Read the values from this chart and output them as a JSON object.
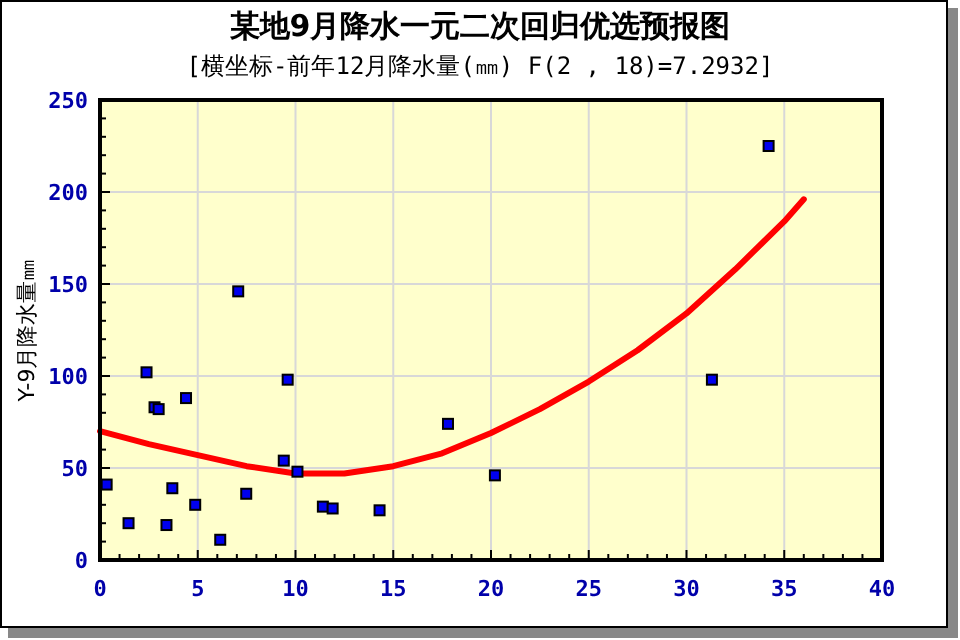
{
  "chart_data": {
    "type": "scatter",
    "title": "某地9月降水一元二次回归优选预报图",
    "subtitle": "[横坐标-前年12月降水量(㎜) F(2 , 18)=7.2932]",
    "ylabel": "Y-9月降水量㎜",
    "series": [
      {
        "type": "scatter",
        "color": "#0000ee",
        "marker": "square",
        "x": [
          0.34,
          1.46,
          2.38,
          2.79,
          3.0,
          3.4,
          3.7,
          4.4,
          4.87,
          6.15,
          7.07,
          7.48,
          9.4,
          9.6,
          10.1,
          11.4,
          11.9,
          14.3,
          17.8,
          20.2,
          31.3,
          34.2
        ],
        "values": [
          41,
          20,
          102,
          83,
          82,
          19,
          39,
          88,
          30,
          11,
          146,
          36,
          54,
          98,
          48,
          29,
          28,
          27,
          74,
          46,
          98,
          225
        ]
      },
      {
        "type": "line",
        "color": "#ff0000",
        "marker": "none",
        "line_style": "solid",
        "x": [
          0,
          2.5,
          5,
          7.5,
          10,
          12.5,
          15,
          17.5,
          20,
          22.5,
          25,
          27.5,
          30,
          32.5,
          35,
          36
        ],
        "values": [
          70,
          63,
          57,
          51,
          47,
          47,
          51,
          58,
          69,
          82,
          97,
          114,
          134,
          158,
          184,
          196
        ]
      }
    ],
    "xlim": [
      0,
      40
    ],
    "ylim": [
      0,
      250
    ],
    "xticks": [
      0,
      {
        "value": 1,
        "label": null
      },
      {
        "value": 2,
        "label": null
      },
      {
        "value": 3,
        "label": null
      },
      {
        "value": 4,
        "label": null
      },
      5,
      {
        "value": 6,
        "label": null
      },
      {
        "value": 7,
        "label": null
      },
      {
        "value": 8,
        "label": null
      },
      {
        "value": 9,
        "label": null
      },
      10,
      {
        "value": 11,
        "label": null
      },
      {
        "value": 12,
        "label": null
      },
      {
        "value": 13,
        "label": null
      },
      {
        "value": 14,
        "label": null
      },
      15,
      {
        "value": 16,
        "label": null
      },
      {
        "value": 17,
        "label": null
      },
      {
        "value": 18,
        "label": null
      },
      {
        "value": 19,
        "label": null
      },
      20,
      {
        "value": 21,
        "label": null
      },
      {
        "value": 22,
        "label": null
      },
      {
        "value": 23,
        "label": null
      },
      {
        "value": 24,
        "label": null
      },
      25,
      {
        "value": 26,
        "label": null
      },
      {
        "value": 27,
        "label": null
      },
      {
        "value": 28,
        "label": null
      },
      {
        "value": 29,
        "label": null
      },
      30,
      {
        "value": 31,
        "label": null
      },
      {
        "value": 32,
        "label": null
      },
      {
        "value": 33,
        "label": null
      },
      {
        "value": 34,
        "label": null
      },
      35,
      {
        "value": 36,
        "label": null
      },
      {
        "value": 37,
        "label": null
      },
      {
        "value": 38,
        "label": null
      },
      {
        "value": 39,
        "label": null
      },
      40
    ],
    "yticks": [
      0,
      {
        "value": 10,
        "label": null
      },
      {
        "value": 20,
        "label": null
      },
      {
        "value": 30,
        "label": null
      },
      {
        "value": 40,
        "label": null
      },
      50,
      {
        "value": 60,
        "label": null
      },
      {
        "value": 70,
        "label": null
      },
      {
        "value": 80,
        "label": null
      },
      {
        "value": 90,
        "label": null
      },
      100,
      {
        "value": 110,
        "label": null
      },
      {
        "value": 120,
        "label": null
      },
      {
        "value": 130,
        "label": null
      },
      {
        "value": 140,
        "label": null
      },
      150,
      {
        "value": 160,
        "label": null
      },
      {
        "value": 170,
        "label": null
      },
      {
        "value": 180,
        "label": null
      },
      {
        "value": 190,
        "label": null
      },
      200,
      {
        "value": 210,
        "label": null
      },
      {
        "value": 220,
        "label": null
      },
      {
        "value": 230,
        "label": null
      },
      {
        "value": 240,
        "label": null
      },
      250
    ],
    "grid": true
  }
}
